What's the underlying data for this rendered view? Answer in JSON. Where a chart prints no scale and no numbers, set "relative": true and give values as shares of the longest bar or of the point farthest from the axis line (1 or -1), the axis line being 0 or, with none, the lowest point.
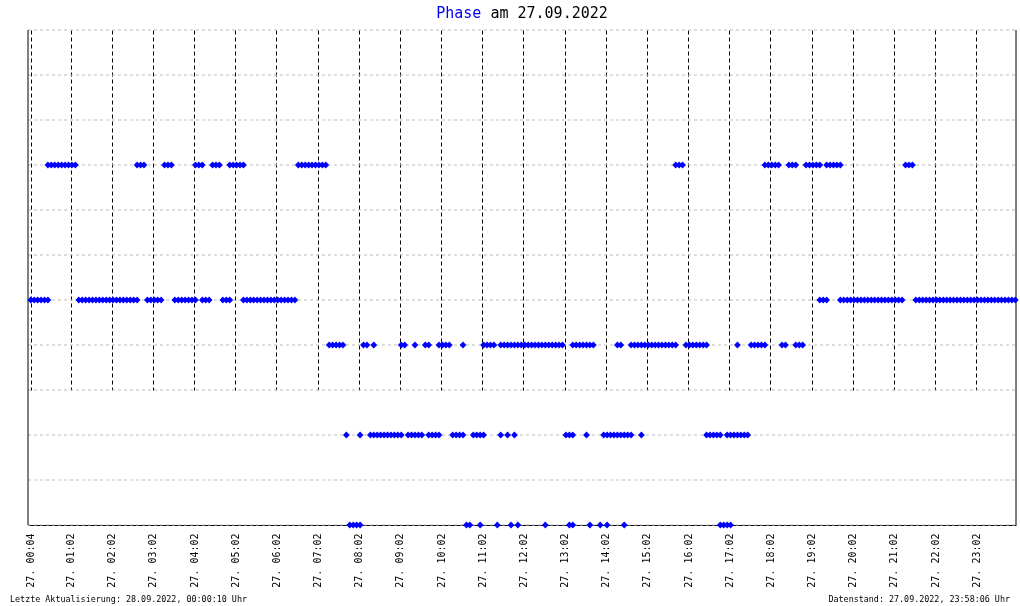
{
  "chart_data": {
    "type": "scatter",
    "title": "Phase am 27.09.2022",
    "relative": true,
    "marker": "diamond",
    "grid": true,
    "xlim": [
      "2022-09-27T00:00",
      "2022-09-28T00:00"
    ],
    "xticks": [
      {
        "value": "2022-09-27T00:04",
        "label": "27. 00:04"
      },
      {
        "value": "2022-09-27T01:02",
        "label": "27. 01:02"
      },
      {
        "value": "2022-09-27T02:02",
        "label": "27. 02:02"
      },
      {
        "value": "2022-09-27T03:02",
        "label": "27. 03:02"
      },
      {
        "value": "2022-09-27T04:02",
        "label": "27. 04:02"
      },
      {
        "value": "2022-09-27T05:02",
        "label": "27. 05:02"
      },
      {
        "value": "2022-09-27T06:02",
        "label": "27. 06:02"
      },
      {
        "value": "2022-09-27T07:02",
        "label": "27. 07:02"
      },
      {
        "value": "2022-09-27T08:02",
        "label": "27. 08:02"
      },
      {
        "value": "2022-09-27T09:02",
        "label": "27. 09:02"
      },
      {
        "value": "2022-09-27T10:02",
        "label": "27. 10:02"
      },
      {
        "value": "2022-09-27T11:02",
        "label": "27. 11:02"
      },
      {
        "value": "2022-09-27T12:02",
        "label": "27. 12:02"
      },
      {
        "value": "2022-09-27T13:02",
        "label": "27. 13:02"
      },
      {
        "value": "2022-09-27T14:02",
        "label": "27. 14:02"
      },
      {
        "value": "2022-09-27T15:02",
        "label": "27. 15:02"
      },
      {
        "value": "2022-09-27T16:02",
        "label": "27. 16:02"
      },
      {
        "value": "2022-09-27T17:02",
        "label": "27. 17:02"
      },
      {
        "value": "2022-09-27T18:02",
        "label": "27. 18:02"
      },
      {
        "value": "2022-09-27T19:02",
        "label": "27. 19:02"
      },
      {
        "value": "2022-09-27T20:02",
        "label": "27. 20:02"
      },
      {
        "value": "2022-09-27T21:02",
        "label": "27. 21:02"
      },
      {
        "value": "2022-09-27T22:02",
        "label": "27. 22:02"
      },
      {
        "value": "2022-09-27T23:02",
        "label": "27. 23:02"
      }
    ],
    "series": [
      {
        "color": "#0000ff",
        "x": [
          "2022-09-27T00:29",
          "2022-09-27T00:34",
          "2022-09-27T00:39",
          "2022-09-27T00:44",
          "2022-09-27T00:49",
          "2022-09-27T00:54",
          "2022-09-27T00:59",
          "2022-09-27T01:04",
          "2022-09-27T01:09",
          "2022-09-27T02:39",
          "2022-09-27T02:44",
          "2022-09-27T02:49",
          "2022-09-27T03:19",
          "2022-09-27T03:24",
          "2022-09-27T03:29",
          "2022-09-27T04:04",
          "2022-09-27T04:09",
          "2022-09-27T04:14",
          "2022-09-27T04:29",
          "2022-09-27T04:34",
          "2022-09-27T04:39",
          "2022-09-27T04:54",
          "2022-09-27T04:59",
          "2022-09-27T05:04",
          "2022-09-27T05:09",
          "2022-09-27T05:14",
          "2022-09-27T06:34",
          "2022-09-27T06:39",
          "2022-09-27T06:44",
          "2022-09-27T06:49",
          "2022-09-27T06:54",
          "2022-09-27T06:59",
          "2022-09-27T07:04",
          "2022-09-27T07:09",
          "2022-09-27T07:14",
          "2022-09-27T15:44",
          "2022-09-27T15:49",
          "2022-09-27T15:54",
          "2022-09-27T17:54",
          "2022-09-27T17:59",
          "2022-09-27T18:04",
          "2022-09-27T18:09",
          "2022-09-27T18:14",
          "2022-09-27T18:29",
          "2022-09-27T18:34",
          "2022-09-27T18:39",
          "2022-09-27T18:54",
          "2022-09-27T18:59",
          "2022-09-27T19:04",
          "2022-09-27T19:09",
          "2022-09-27T19:14",
          "2022-09-27T19:24",
          "2022-09-27T19:29",
          "2022-09-27T19:34",
          "2022-09-27T19:39",
          "2022-09-27T19:44",
          "2022-09-27T21:19",
          "2022-09-27T21:24",
          "2022-09-27T21:29",
          "2022-09-27T00:04",
          "2022-09-27T00:09",
          "2022-09-27T00:14",
          "2022-09-27T00:19",
          "2022-09-27T00:24",
          "2022-09-27T00:29",
          "2022-09-27T01:14",
          "2022-09-27T01:19",
          "2022-09-27T01:24",
          "2022-09-27T01:29",
          "2022-09-27T01:34",
          "2022-09-27T01:39",
          "2022-09-27T01:44",
          "2022-09-27T01:49",
          "2022-09-27T01:54",
          "2022-09-27T01:59",
          "2022-09-27T02:04",
          "2022-09-27T02:09",
          "2022-09-27T02:14",
          "2022-09-27T02:19",
          "2022-09-27T02:24",
          "2022-09-27T02:29",
          "2022-09-27T02:34",
          "2022-09-27T02:39",
          "2022-09-27T02:54",
          "2022-09-27T02:59",
          "2022-09-27T03:04",
          "2022-09-27T03:09",
          "2022-09-27T03:14",
          "2022-09-27T03:34",
          "2022-09-27T03:39",
          "2022-09-27T03:44",
          "2022-09-27T03:49",
          "2022-09-27T03:54",
          "2022-09-27T03:59",
          "2022-09-27T04:04",
          "2022-09-27T04:14",
          "2022-09-27T04:19",
          "2022-09-27T04:24",
          "2022-09-27T04:44",
          "2022-09-27T04:49",
          "2022-09-27T04:54",
          "2022-09-27T05:14",
          "2022-09-27T05:19",
          "2022-09-27T05:24",
          "2022-09-27T05:29",
          "2022-09-27T05:34",
          "2022-09-27T05:39",
          "2022-09-27T05:44",
          "2022-09-27T05:49",
          "2022-09-27T05:54",
          "2022-09-27T05:59",
          "2022-09-27T06:04",
          "2022-09-27T06:09",
          "2022-09-27T06:14",
          "2022-09-27T06:19",
          "2022-09-27T06:24",
          "2022-09-27T06:29",
          "2022-09-27T19:14",
          "2022-09-27T19:19",
          "2022-09-27T19:24",
          "2022-09-27T19:44",
          "2022-09-27T19:49",
          "2022-09-27T19:54",
          "2022-09-27T19:59",
          "2022-09-27T20:04",
          "2022-09-27T20:09",
          "2022-09-27T20:14",
          "2022-09-27T20:19",
          "2022-09-27T20:24",
          "2022-09-27T20:29",
          "2022-09-27T20:34",
          "2022-09-27T20:39",
          "2022-09-27T20:44",
          "2022-09-27T20:49",
          "2022-09-27T20:54",
          "2022-09-27T20:59",
          "2022-09-27T21:04",
          "2022-09-27T21:09",
          "2022-09-27T21:14",
          "2022-09-27T21:34",
          "2022-09-27T21:39",
          "2022-09-27T21:44",
          "2022-09-27T21:49",
          "2022-09-27T21:54",
          "2022-09-27T21:59",
          "2022-09-27T22:04",
          "2022-09-27T22:09",
          "2022-09-27T22:14",
          "2022-09-27T22:19",
          "2022-09-27T22:24",
          "2022-09-27T22:29",
          "2022-09-27T22:34",
          "2022-09-27T22:39",
          "2022-09-27T22:44",
          "2022-09-27T22:49",
          "2022-09-27T22:54",
          "2022-09-27T22:59",
          "2022-09-27T23:04",
          "2022-09-27T23:09",
          "2022-09-27T23:14",
          "2022-09-27T23:19",
          "2022-09-27T23:24",
          "2022-09-27T23:29",
          "2022-09-27T23:34",
          "2022-09-27T23:39",
          "2022-09-27T23:44",
          "2022-09-27T23:49",
          "2022-09-27T23:54",
          "2022-09-27T23:59",
          "2022-09-27T07:19",
          "2022-09-27T07:24",
          "2022-09-27T07:29",
          "2022-09-27T07:34",
          "2022-09-27T07:39",
          "2022-09-27T08:09",
          "2022-09-27T08:14",
          "2022-09-27T08:24",
          "2022-09-27T09:04",
          "2022-09-27T09:09",
          "2022-09-27T09:24",
          "2022-09-27T09:39",
          "2022-09-27T09:44",
          "2022-09-27T09:59",
          "2022-09-27T10:04",
          "2022-09-27T10:09",
          "2022-09-27T10:14",
          "2022-09-27T10:34",
          "2022-09-27T11:04",
          "2022-09-27T11:09",
          "2022-09-27T11:14",
          "2022-09-27T11:19",
          "2022-09-27T11:29",
          "2022-09-27T11:34",
          "2022-09-27T11:39",
          "2022-09-27T11:44",
          "2022-09-27T11:49",
          "2022-09-27T11:54",
          "2022-09-27T11:59",
          "2022-09-27T12:04",
          "2022-09-27T12:09",
          "2022-09-27T12:14",
          "2022-09-27T12:19",
          "2022-09-27T12:24",
          "2022-09-27T12:29",
          "2022-09-27T12:34",
          "2022-09-27T12:39",
          "2022-09-27T12:44",
          "2022-09-27T12:49",
          "2022-09-27T12:54",
          "2022-09-27T12:59",
          "2022-09-27T13:14",
          "2022-09-27T13:19",
          "2022-09-27T13:24",
          "2022-09-27T13:29",
          "2022-09-27T13:34",
          "2022-09-27T13:39",
          "2022-09-27T13:44",
          "2022-09-27T14:19",
          "2022-09-27T14:24",
          "2022-09-27T14:39",
          "2022-09-27T14:44",
          "2022-09-27T14:49",
          "2022-09-27T14:54",
          "2022-09-27T14:59",
          "2022-09-27T15:04",
          "2022-09-27T15:09",
          "2022-09-27T15:14",
          "2022-09-27T15:19",
          "2022-09-27T15:24",
          "2022-09-27T15:29",
          "2022-09-27T15:34",
          "2022-09-27T15:39",
          "2022-09-27T15:44",
          "2022-09-27T15:59",
          "2022-09-27T16:04",
          "2022-09-27T16:09",
          "2022-09-27T16:14",
          "2022-09-27T16:19",
          "2022-09-27T16:24",
          "2022-09-27T16:29",
          "2022-09-27T17:14",
          "2022-09-27T17:34",
          "2022-09-27T17:39",
          "2022-09-27T17:44",
          "2022-09-27T17:49",
          "2022-09-27T17:54",
          "2022-09-27T18:19",
          "2022-09-27T18:24",
          "2022-09-27T18:39",
          "2022-09-27T18:44",
          "2022-09-27T18:49",
          "2022-09-27T07:44",
          "2022-09-27T08:04",
          "2022-09-27T08:19",
          "2022-09-27T08:24",
          "2022-09-27T08:29",
          "2022-09-27T08:34",
          "2022-09-27T08:39",
          "2022-09-27T08:44",
          "2022-09-27T08:49",
          "2022-09-27T08:54",
          "2022-09-27T08:59",
          "2022-09-27T09:04",
          "2022-09-27T09:14",
          "2022-09-27T09:19",
          "2022-09-27T09:24",
          "2022-09-27T09:29",
          "2022-09-27T09:34",
          "2022-09-27T09:44",
          "2022-09-27T09:49",
          "2022-09-27T09:54",
          "2022-09-27T09:59",
          "2022-09-27T10:19",
          "2022-09-27T10:24",
          "2022-09-27T10:29",
          "2022-09-27T10:34",
          "2022-09-27T10:49",
          "2022-09-27T10:54",
          "2022-09-27T10:59",
          "2022-09-27T11:04",
          "2022-09-27T11:29",
          "2022-09-27T11:39",
          "2022-09-27T11:49",
          "2022-09-27T13:04",
          "2022-09-27T13:09",
          "2022-09-27T13:14",
          "2022-09-27T13:34",
          "2022-09-27T13:59",
          "2022-09-27T14:04",
          "2022-09-27T14:09",
          "2022-09-27T14:14",
          "2022-09-27T14:19",
          "2022-09-27T14:24",
          "2022-09-27T14:29",
          "2022-09-27T14:34",
          "2022-09-27T14:39",
          "2022-09-27T14:54",
          "2022-09-27T16:29",
          "2022-09-27T16:34",
          "2022-09-27T16:39",
          "2022-09-27T16:44",
          "2022-09-27T16:49",
          "2022-09-27T16:59",
          "2022-09-27T17:04",
          "2022-09-27T17:09",
          "2022-09-27T17:14",
          "2022-09-27T17:19",
          "2022-09-27T17:24",
          "2022-09-27T17:29",
          "2022-09-27T07:49",
          "2022-09-27T07:54",
          "2022-09-27T07:59",
          "2022-09-27T08:04",
          "2022-09-27T10:39",
          "2022-09-27T10:44",
          "2022-09-27T10:59",
          "2022-09-27T11:24",
          "2022-09-27T11:44",
          "2022-09-27T11:54",
          "2022-09-27T12:34",
          "2022-09-27T13:09",
          "2022-09-27T13:14",
          "2022-09-27T13:39",
          "2022-09-27T13:54",
          "2022-09-27T14:04",
          "2022-09-27T14:29",
          "2022-09-27T16:49",
          "2022-09-27T16:54",
          "2022-09-27T16:59",
          "2022-09-27T17:04"
        ],
        "values": [
          1,
          1,
          1,
          1,
          1,
          1,
          1,
          1,
          1,
          1,
          1,
          1,
          1,
          1,
          1,
          1,
          1,
          1,
          1,
          1,
          1,
          1,
          1,
          1,
          1,
          1,
          1,
          1,
          1,
          1,
          1,
          1,
          1,
          1,
          1,
          1,
          1,
          1,
          1,
          1,
          1,
          1,
          1,
          1,
          1,
          1,
          1,
          1,
          1,
          1,
          1,
          1,
          1,
          1,
          1,
          1,
          1,
          1,
          1,
          0.625,
          0.625,
          0.625,
          0.625,
          0.625,
          0.625,
          0.625,
          0.625,
          0.625,
          0.625,
          0.625,
          0.625,
          0.625,
          0.625,
          0.625,
          0.625,
          0.625,
          0.625,
          0.625,
          0.625,
          0.625,
          0.625,
          0.625,
          0.625,
          0.625,
          0.625,
          0.625,
          0.625,
          0.625,
          0.625,
          0.625,
          0.625,
          0.625,
          0.625,
          0.625,
          0.625,
          0.625,
          0.625,
          0.625,
          0.625,
          0.625,
          0.625,
          0.625,
          0.625,
          0.625,
          0.625,
          0.625,
          0.625,
          0.625,
          0.625,
          0.625,
          0.625,
          0.625,
          0.625,
          0.625,
          0.625,
          0.625,
          0.625,
          0.625,
          0.625,
          0.625,
          0.625,
          0.625,
          0.625,
          0.625,
          0.625,
          0.625,
          0.625,
          0.625,
          0.625,
          0.625,
          0.625,
          0.625,
          0.625,
          0.625,
          0.625,
          0.625,
          0.625,
          0.625,
          0.625,
          0.625,
          0.625,
          0.625,
          0.625,
          0.625,
          0.625,
          0.625,
          0.625,
          0.625,
          0.625,
          0.625,
          0.625,
          0.625,
          0.625,
          0.625,
          0.625,
          0.625,
          0.625,
          0.625,
          0.625,
          0.625,
          0.625,
          0.625,
          0.625,
          0.625,
          0.625,
          0.625,
          0.625,
          0.625,
          0.625,
          0.5,
          0.5,
          0.5,
          0.5,
          0.5,
          0.5,
          0.5,
          0.5,
          0.5,
          0.5,
          0.5,
          0.5,
          0.5,
          0.5,
          0.5,
          0.5,
          0.5,
          0.5,
          0.5,
          0.5,
          0.5,
          0.5,
          0.5,
          0.5,
          0.5,
          0.5,
          0.5,
          0.5,
          0.5,
          0.5,
          0.5,
          0.5,
          0.5,
          0.5,
          0.5,
          0.5,
          0.5,
          0.5,
          0.5,
          0.5,
          0.5,
          0.5,
          0.5,
          0.5,
          0.5,
          0.5,
          0.5,
          0.5,
          0.5,
          0.5,
          0.5,
          0.5,
          0.5,
          0.5,
          0.5,
          0.5,
          0.5,
          0.5,
          0.5,
          0.5,
          0.5,
          0.5,
          0.5,
          0.5,
          0.5,
          0.5,
          0.5,
          0.5,
          0.5,
          0.5,
          0.5,
          0.5,
          0.5,
          0.5,
          0.5,
          0.5,
          0.5,
          0.5,
          0.5,
          0.5,
          0.5,
          0.5,
          0.25,
          0.25,
          0.25,
          0.25,
          0.25,
          0.25,
          0.25,
          0.25,
          0.25,
          0.25,
          0.25,
          0.25,
          0.25,
          0.25,
          0.25,
          0.25,
          0.25,
          0.25,
          0.25,
          0.25,
          0.25,
          0.25,
          0.25,
          0.25,
          0.25,
          0.25,
          0.25,
          0.25,
          0.25,
          0.25,
          0.25,
          0.25,
          0.25,
          0.25,
          0.25,
          0.25,
          0.25,
          0.25,
          0.25,
          0.25,
          0.25,
          0.25,
          0.25,
          0.25,
          0.25,
          0.25,
          0.25,
          0.25,
          0.25,
          0.25,
          0.25,
          0.25,
          0.25,
          0.25,
          0.25,
          0.25,
          0.25,
          0.25,
          0,
          0,
          0,
          0,
          0,
          0,
          0,
          0,
          0,
          0,
          0,
          0,
          0,
          0,
          0,
          0,
          0,
          0,
          0,
          0,
          0
        ]
      }
    ],
    "annotations": [
      "Letzte Aktualisierung: 28.09.2022, 00:00:10 Uhr",
      "Datenstand: 27.09.2022, 23:58:06 Uhr"
    ]
  }
}
